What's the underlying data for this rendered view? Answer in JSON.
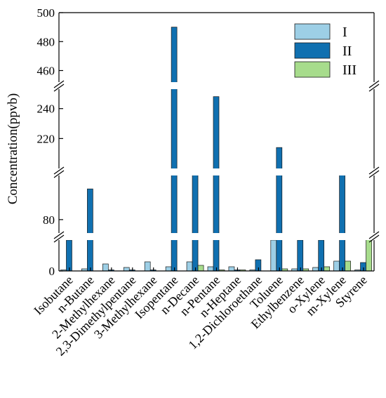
{
  "chart_data": {
    "type": "bar",
    "ylabel": "Concentration(ppvb)",
    "categories": [
      "Isobutane",
      "n-Butane",
      "2-Methylhexane",
      "2,3-Dimethylpentane",
      "3-Methylhexane",
      "Isopentane",
      "n-Decane",
      "n-Pentane",
      "n-Heptane",
      "1,2-Dichloroethane",
      "Toluene",
      "Ethylbenzene",
      "o-Xylene",
      "m-Xylene",
      "Styrene"
    ],
    "series": [
      {
        "name": "I",
        "color": "#9dcfe6",
        "values": [
          0.5,
          1.5,
          5,
          2.5,
          6.5,
          3,
          6.5,
          3,
          3,
          0.3,
          22,
          1.5,
          2.5,
          7,
          0.3
        ]
      },
      {
        "name": "II",
        "color": "#1070b0",
        "values": [
          22,
          96,
          0.5,
          0.3,
          0.5,
          490,
          104,
          248,
          0.5,
          8,
          214,
          22,
          22,
          118,
          6
        ]
      },
      {
        "name": "III",
        "color": "#a7dc8c",
        "values": [
          0,
          0,
          0,
          0,
          0,
          0,
          4,
          0.3,
          0.3,
          0,
          1.5,
          1.5,
          3,
          7,
          62
        ]
      }
    ],
    "y_axis_broken": true,
    "y_segments": [
      {
        "range": [
          0,
          22
        ],
        "ticks": [
          0
        ]
      },
      {
        "range": [
          73,
          103
        ],
        "ticks": [
          80
        ]
      },
      {
        "range": [
          200,
          253
        ],
        "ticks": [
          220,
          240
        ]
      },
      {
        "range": [
          452,
          500
        ],
        "ticks": [
          460,
          480,
          500
        ]
      }
    ],
    "legend_position": "top-right",
    "grid": false
  }
}
